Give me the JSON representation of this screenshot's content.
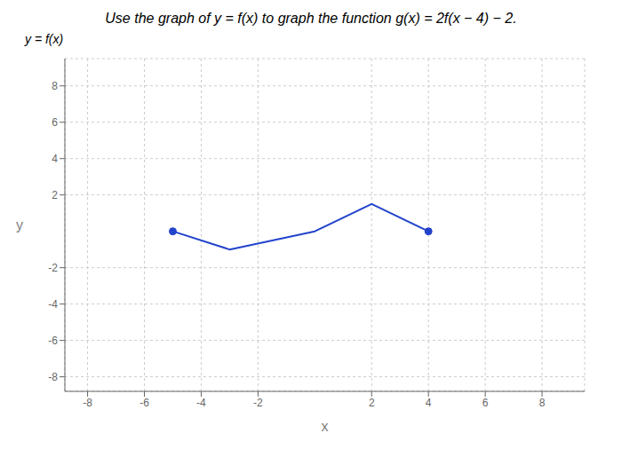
{
  "chart_data": {
    "type": "line",
    "title": "Use the graph of y = f(x) to graph the function g(x) = 2f(x − 4) − 2.",
    "annotation": "y = f(x)",
    "xlabel": "x",
    "ylabel": "y",
    "x": [
      -5,
      -3,
      0,
      2,
      4
    ],
    "values": [
      0,
      -1,
      0,
      1.5,
      0
    ],
    "color": "#2244cc",
    "marker": "endpoints",
    "xlim": [
      -8.8,
      9.5
    ],
    "ylim": [
      -8.8,
      9.5
    ],
    "xticks": [
      -8,
      -6,
      -4,
      -2,
      2,
      4,
      6,
      8
    ],
    "yticks": [
      -8,
      -6,
      -4,
      -2,
      2,
      4,
      6,
      8
    ],
    "grid": true
  }
}
